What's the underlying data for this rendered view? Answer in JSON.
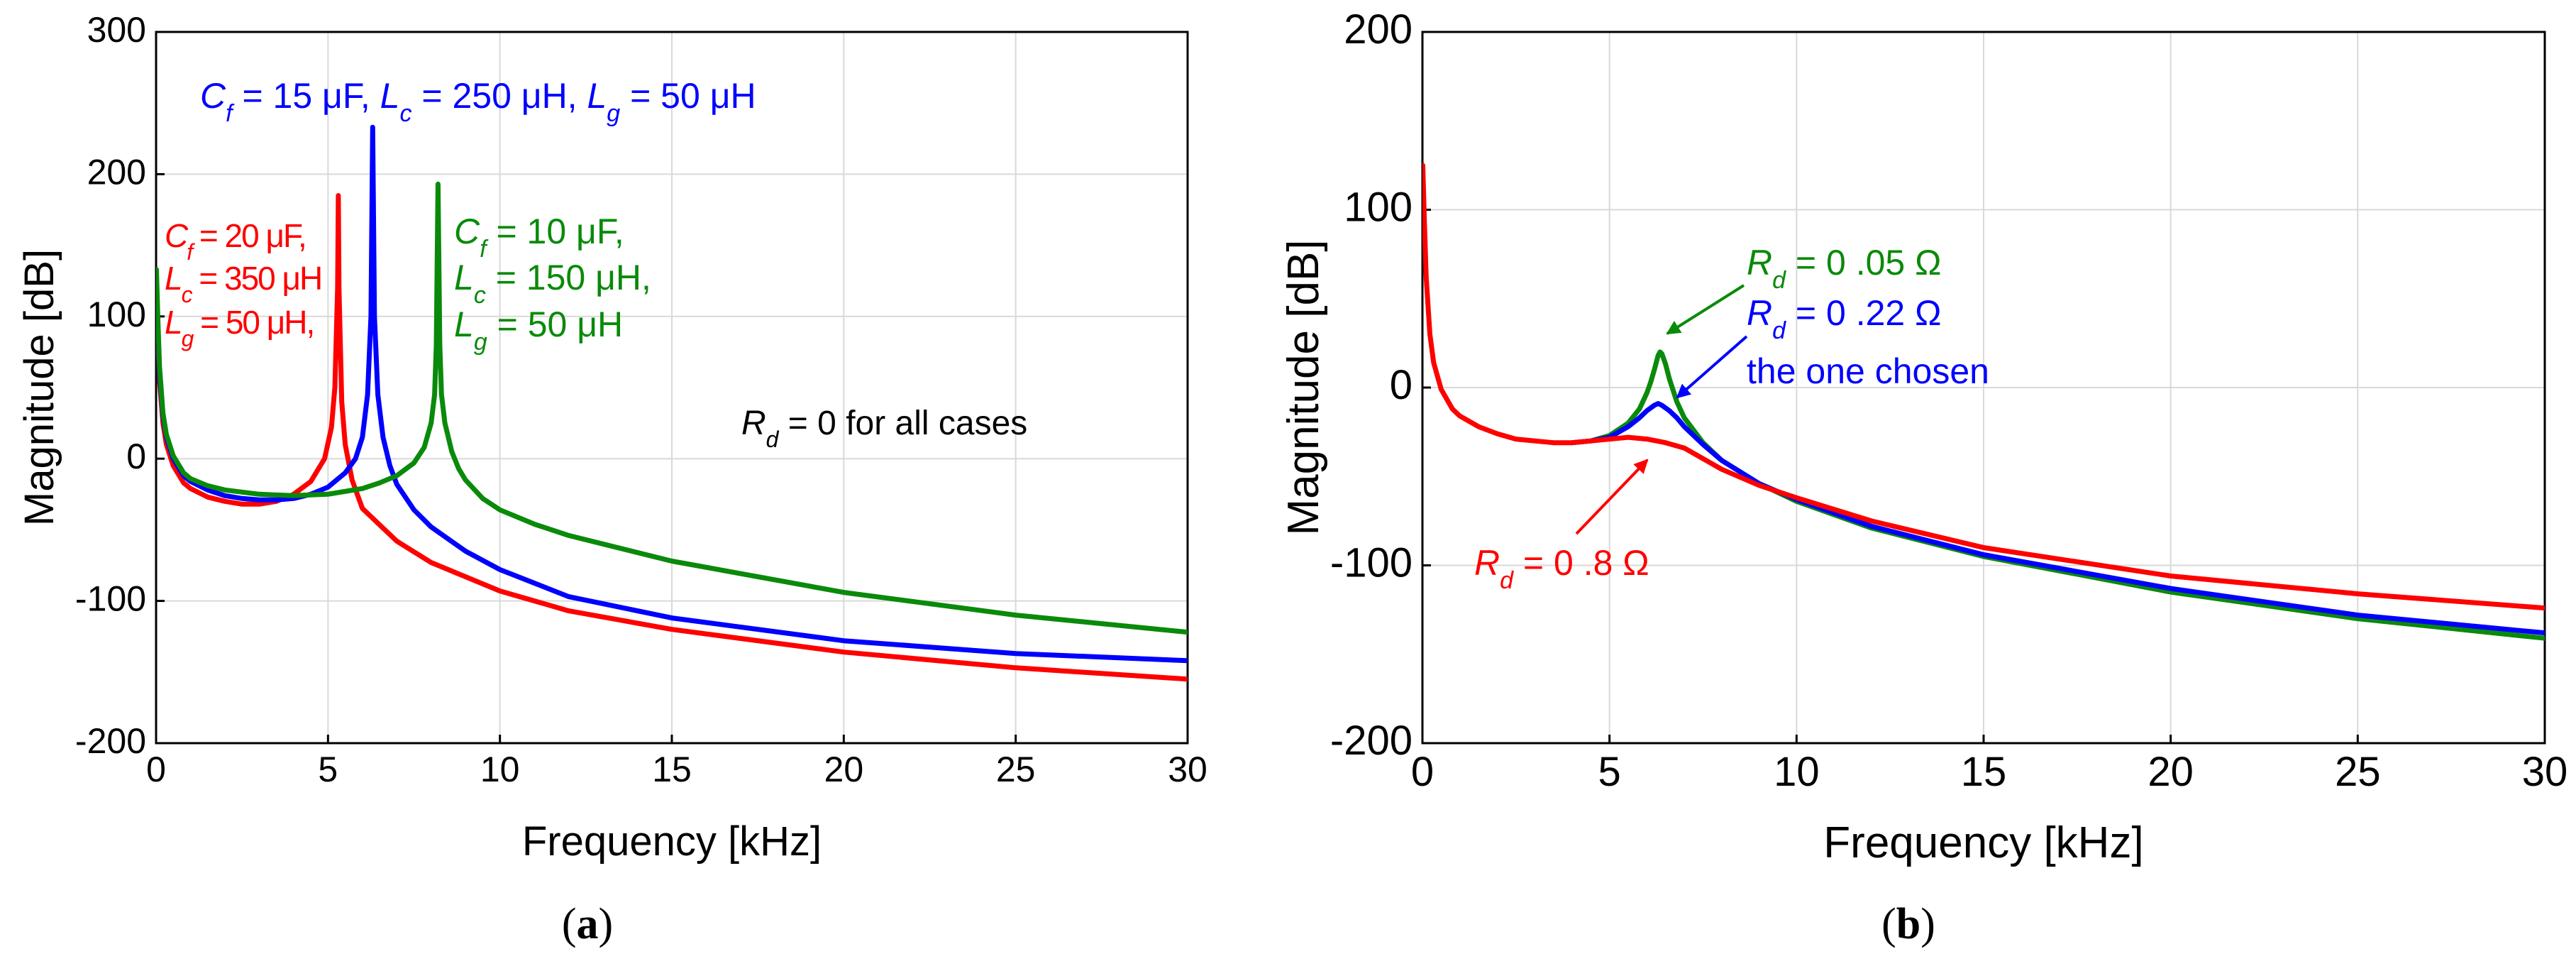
{
  "colors": {
    "red": "#ff0000",
    "blue": "#0000ff",
    "green": "#0a8a0a",
    "grid": "#d9d9d9",
    "axis": "#000000"
  },
  "chart_data": [
    {
      "id": "a",
      "type": "line",
      "caption": "(a)",
      "caption_letter": "a",
      "xlabel": "Frequency [kHz]",
      "ylabel": "Magnitude [dB]",
      "xlim": [
        0,
        30
      ],
      "ylim": [
        -200,
        300
      ],
      "xticks": [
        0,
        5,
        10,
        15,
        20,
        25,
        30
      ],
      "yticks": [
        -200,
        -100,
        0,
        100,
        200,
        300
      ],
      "grid": true,
      "annotations": {
        "blue": [
          "C",
          "f",
          " = 15 μF, ",
          "L",
          "c",
          " = 250 μH, ",
          "L",
          "g",
          " = 50 μH"
        ],
        "red_1": [
          "C",
          "f",
          " = 20 μF,"
        ],
        "red_2": [
          "L",
          "c",
          " = 350 μH"
        ],
        "red_3": [
          "L",
          "g",
          " = 50 μH,"
        ],
        "green_1": [
          "C",
          "f",
          " = 10 μF,"
        ],
        "green_2": [
          "L",
          "c",
          " = 150 μH,"
        ],
        "green_3": [
          "L",
          "g",
          " = 50 μH"
        ],
        "rd_note": [
          "R",
          "d",
          " = 0  for all cases"
        ]
      },
      "series": [
        {
          "name": "Cf = 20 μF, Lc = 350 μH, Lg = 50 μH",
          "color": "red",
          "x": [
            0.01,
            0.05,
            0.1,
            0.2,
            0.3,
            0.5,
            0.8,
            1.0,
            1.5,
            2.0,
            2.5,
            3.0,
            3.5,
            4.0,
            4.5,
            4.9,
            5.1,
            5.2,
            5.28,
            5.3,
            5.32,
            5.4,
            5.5,
            5.7,
            6.0,
            7.0,
            8.0,
            10.0,
            12.0,
            15.0,
            20.0,
            25.0,
            30.0
          ],
          "y": [
            120,
            90,
            55,
            25,
            10,
            -5,
            -17,
            -21,
            -27,
            -30,
            -32,
            -32,
            -30,
            -25,
            -16,
            0,
            22,
            50,
            120,
            185,
            120,
            40,
            10,
            -15,
            -35,
            -58,
            -73,
            -93,
            -107,
            -120,
            -136,
            -147,
            -155
          ]
        },
        {
          "name": "Cf = 15 μF, Lc = 250 μH, Lg = 50 μH",
          "color": "blue",
          "x": [
            0.01,
            0.05,
            0.1,
            0.2,
            0.3,
            0.5,
            0.8,
            1.0,
            1.5,
            2.0,
            2.5,
            3.0,
            3.5,
            4.0,
            4.5,
            5.0,
            5.5,
            5.8,
            6.0,
            6.15,
            6.25,
            6.3,
            6.35,
            6.45,
            6.6,
            6.8,
            7.0,
            7.5,
            8.0,
            9.0,
            10.0,
            12.0,
            15.0,
            20.0,
            25.0,
            30.0
          ],
          "y": [
            125,
            95,
            60,
            30,
            15,
            0,
            -12,
            -16,
            -22,
            -26,
            -28,
            -29,
            -29,
            -28,
            -25,
            -20,
            -10,
            0,
            15,
            45,
            100,
            233,
            100,
            45,
            15,
            -5,
            -18,
            -36,
            -48,
            -65,
            -78,
            -97,
            -112,
            -128,
            -137,
            -142
          ]
        },
        {
          "name": "Cf = 10 μF, Lc = 150 μH, Lg = 50 μH",
          "color": "green",
          "x": [
            0.01,
            0.05,
            0.1,
            0.2,
            0.3,
            0.5,
            0.8,
            1.0,
            1.5,
            2.0,
            3.0,
            4.0,
            5.0,
            6.0,
            6.5,
            7.0,
            7.5,
            7.8,
            8.0,
            8.1,
            8.15,
            8.2,
            8.25,
            8.3,
            8.4,
            8.6,
            8.8,
            9.0,
            9.5,
            10.0,
            11.0,
            12.0,
            15.0,
            20.0,
            25.0,
            30.0
          ],
          "y": [
            133,
            100,
            65,
            32,
            17,
            2,
            -10,
            -14,
            -19,
            -22,
            -25,
            -26,
            -25,
            -21,
            -17,
            -12,
            -3,
            8,
            25,
            45,
            80,
            193,
            80,
            45,
            25,
            5,
            -7,
            -15,
            -28,
            -36,
            -46,
            -54,
            -72,
            -94,
            -110,
            -122
          ]
        }
      ]
    },
    {
      "id": "b",
      "type": "line",
      "caption": "(b)",
      "caption_letter": "b",
      "xlabel": "Frequency [kHz]",
      "ylabel": "Magnitude [dB]",
      "xlim": [
        0,
        30
      ],
      "ylim": [
        -200,
        200
      ],
      "xticks": [
        0,
        5,
        10,
        15,
        20,
        25,
        30
      ],
      "yticks": [
        -200,
        -100,
        0,
        100,
        200
      ],
      "grid": true,
      "annotations": {
        "green": [
          "R",
          "d",
          " = 0 .05 Ω"
        ],
        "blue": [
          "R",
          "d",
          " = 0 .22 Ω"
        ],
        "blue_note": "the one chosen",
        "red": [
          "R",
          "d",
          " = 0 .8 Ω"
        ]
      },
      "series": [
        {
          "name": "Rd = 0 .05 Ω",
          "color": "green",
          "x": [
            4.0,
            4.5,
            5.0,
            5.5,
            5.8,
            6.0,
            6.1,
            6.2,
            6.3,
            6.35,
            6.4,
            6.5,
            6.6,
            6.8,
            7.0,
            7.5,
            8.0,
            9.0,
            10.0,
            12.0,
            15.0,
            20.0,
            25.0,
            30.0
          ],
          "y": [
            -31,
            -30,
            -27,
            -20,
            -12,
            -3,
            3,
            10,
            18,
            20,
            19,
            13,
            5,
            -8,
            -17,
            -31,
            -41,
            -54,
            -64,
            -79,
            -95,
            -115,
            -130,
            -141
          ]
        },
        {
          "name": "Rd = 0 .22 Ω",
          "color": "blue",
          "x": [
            4.0,
            4.5,
            5.0,
            5.5,
            5.8,
            6.0,
            6.2,
            6.3,
            6.4,
            6.6,
            6.8,
            7.0,
            7.5,
            8.0,
            9.0,
            10.0,
            12.0,
            15.0,
            20.0,
            25.0,
            30.0
          ],
          "y": [
            -31,
            -30,
            -28,
            -22,
            -17,
            -13,
            -10,
            -9,
            -10,
            -13,
            -17,
            -22,
            -32,
            -41,
            -54,
            -63,
            -78,
            -94,
            -113,
            -128,
            -138
          ]
        },
        {
          "name": "Rd = 0 .8 Ω",
          "color": "red",
          "x": [
            0.01,
            0.05,
            0.1,
            0.2,
            0.3,
            0.5,
            0.8,
            1.0,
            1.5,
            2.0,
            2.5,
            3.0,
            3.5,
            4.0,
            4.5,
            5.0,
            5.5,
            6.0,
            6.5,
            7.0,
            7.5,
            8.0,
            9.0,
            10.0,
            12.0,
            15.0,
            20.0,
            25.0,
            30.0
          ],
          "y": [
            125,
            95,
            62,
            30,
            14,
            -1,
            -12,
            -16,
            -22,
            -26,
            -29,
            -30,
            -31,
            -31,
            -30,
            -29,
            -28,
            -29,
            -31,
            -34,
            -40,
            -46,
            -55,
            -62,
            -75,
            -90,
            -106,
            -116,
            -124
          ]
        }
      ]
    }
  ]
}
